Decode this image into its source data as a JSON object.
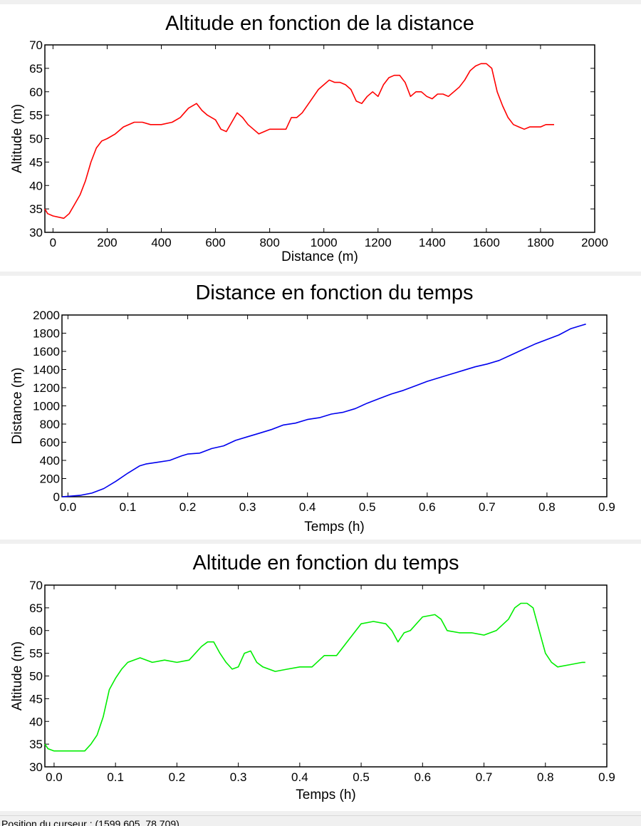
{
  "status_bar": {
    "label": "Position du curseur :",
    "value": "(1599.605, 78.709)"
  },
  "chart_data": [
    {
      "type": "line",
      "title": "Altitude en fonction de la distance",
      "xlabel": "Distance (m)",
      "ylabel": "Altitude (m)",
      "xlim": [
        -30,
        2000
      ],
      "ylim": [
        30,
        70
      ],
      "xticks": [
        0,
        200,
        400,
        600,
        800,
        1000,
        1200,
        1400,
        1600,
        1800,
        2000
      ],
      "xtick_labels": [
        "0",
        "200",
        "400",
        "600",
        "800",
        "1000",
        "1200",
        "1400",
        "1600",
        "1800",
        "2000"
      ],
      "yticks": [
        30,
        35,
        40,
        45,
        50,
        55,
        60,
        65,
        70
      ],
      "ytick_labels": [
        "30",
        "35",
        "40",
        "45",
        "50",
        "55",
        "60",
        "65",
        "70"
      ],
      "grid": false,
      "series": [
        {
          "color": "#ff0000",
          "x": [
            -30,
            -20,
            0,
            40,
            60,
            80,
            100,
            120,
            140,
            160,
            180,
            200,
            230,
            260,
            300,
            330,
            360,
            400,
            440,
            470,
            500,
            530,
            550,
            570,
            600,
            620,
            640,
            660,
            680,
            700,
            720,
            740,
            760,
            780,
            800,
            840,
            860,
            880,
            900,
            920,
            950,
            980,
            1000,
            1020,
            1040,
            1060,
            1080,
            1100,
            1120,
            1140,
            1160,
            1180,
            1200,
            1220,
            1240,
            1260,
            1280,
            1300,
            1320,
            1340,
            1360,
            1380,
            1400,
            1420,
            1440,
            1460,
            1480,
            1500,
            1520,
            1540,
            1560,
            1580,
            1600,
            1620,
            1640,
            1660,
            1680,
            1700,
            1720,
            1740,
            1760,
            1780,
            1800,
            1820,
            1840,
            1850
          ],
          "y": [
            35,
            34,
            33.5,
            33,
            34,
            36,
            38,
            41,
            45,
            48,
            49.5,
            50,
            51,
            52.5,
            53.5,
            53.5,
            53,
            53,
            53.5,
            54.5,
            56.5,
            57.5,
            56,
            55,
            54,
            52,
            51.5,
            53.5,
            55.5,
            54.5,
            53,
            52,
            51,
            51.5,
            52,
            52,
            52,
            54.5,
            54.5,
            55.5,
            58,
            60.5,
            61.5,
            62.5,
            62,
            62,
            61.5,
            60.5,
            58,
            57.5,
            59,
            60,
            59,
            61.5,
            63,
            63.5,
            63.5,
            62,
            59,
            60,
            60,
            59,
            58.5,
            59.5,
            59.5,
            59,
            60,
            61,
            62.5,
            64.5,
            65.5,
            66,
            66,
            65,
            60,
            57,
            54.5,
            53,
            52.5,
            52,
            52.5,
            52.5,
            52.5,
            53,
            53,
            53
          ]
        }
      ]
    },
    {
      "type": "line",
      "title": "Distance en fonction du temps",
      "xlabel": "Temps (h)",
      "ylabel": "Distance (m)",
      "xlim": [
        -0.01,
        0.9
      ],
      "ylim": [
        0,
        2000
      ],
      "xticks": [
        0,
        0.1,
        0.2,
        0.3,
        0.4,
        0.5,
        0.6,
        0.7,
        0.8,
        0.9
      ],
      "xtick_labels": [
        "0.0",
        "0.1",
        "0.2",
        "0.3",
        "0.4",
        "0.5",
        "0.6",
        "0.7",
        "0.8",
        "0.9"
      ],
      "yticks": [
        0,
        200,
        400,
        600,
        800,
        1000,
        1200,
        1400,
        1600,
        1800,
        2000
      ],
      "ytick_labels": [
        "0",
        "200",
        "400",
        "600",
        "800",
        "1000",
        "1200",
        "1400",
        "1600",
        "1800",
        "2000"
      ],
      "grid": false,
      "series": [
        {
          "color": "#0000ee",
          "x": [
            -0.01,
            0.0,
            0.02,
            0.04,
            0.06,
            0.08,
            0.1,
            0.12,
            0.13,
            0.15,
            0.17,
            0.19,
            0.2,
            0.22,
            0.24,
            0.26,
            0.28,
            0.3,
            0.32,
            0.34,
            0.36,
            0.38,
            0.4,
            0.42,
            0.44,
            0.46,
            0.48,
            0.5,
            0.52,
            0.54,
            0.56,
            0.58,
            0.6,
            0.62,
            0.64,
            0.66,
            0.68,
            0.7,
            0.72,
            0.74,
            0.76,
            0.78,
            0.8,
            0.82,
            0.84,
            0.86,
            0.865
          ],
          "y": [
            0,
            5,
            15,
            40,
            90,
            170,
            260,
            340,
            360,
            380,
            400,
            450,
            470,
            480,
            530,
            560,
            620,
            660,
            700,
            740,
            790,
            810,
            850,
            870,
            910,
            930,
            970,
            1030,
            1080,
            1130,
            1170,
            1220,
            1270,
            1310,
            1350,
            1390,
            1430,
            1460,
            1500,
            1560,
            1620,
            1680,
            1730,
            1780,
            1850,
            1890,
            1900
          ]
        }
      ]
    },
    {
      "type": "line",
      "title": "Altitude en fonction du temps",
      "xlabel": "Temps (h)",
      "ylabel": "Altitude (m)",
      "xlim": [
        -0.015,
        0.9
      ],
      "ylim": [
        30,
        70
      ],
      "xticks": [
        0,
        0.1,
        0.2,
        0.3,
        0.4,
        0.5,
        0.6,
        0.7,
        0.8,
        0.9
      ],
      "xtick_labels": [
        "0.0",
        "0.1",
        "0.2",
        "0.3",
        "0.4",
        "0.5",
        "0.6",
        "0.7",
        "0.8",
        "0.9"
      ],
      "yticks": [
        30,
        35,
        40,
        45,
        50,
        55,
        60,
        65,
        70
      ],
      "ytick_labels": [
        "30",
        "35",
        "40",
        "45",
        "50",
        "55",
        "60",
        "65",
        "70"
      ],
      "grid": false,
      "series": [
        {
          "color": "#00ee00",
          "x": [
            -0.015,
            -0.01,
            0.0,
            0.02,
            0.05,
            0.06,
            0.07,
            0.08,
            0.09,
            0.1,
            0.11,
            0.12,
            0.14,
            0.16,
            0.18,
            0.2,
            0.22,
            0.24,
            0.25,
            0.26,
            0.27,
            0.28,
            0.29,
            0.3,
            0.31,
            0.32,
            0.33,
            0.34,
            0.36,
            0.38,
            0.4,
            0.42,
            0.44,
            0.46,
            0.48,
            0.5,
            0.52,
            0.54,
            0.55,
            0.56,
            0.57,
            0.58,
            0.6,
            0.62,
            0.63,
            0.64,
            0.66,
            0.68,
            0.7,
            0.72,
            0.74,
            0.75,
            0.76,
            0.77,
            0.78,
            0.79,
            0.8,
            0.81,
            0.82,
            0.84,
            0.86,
            0.865
          ],
          "y": [
            35,
            34,
            33.5,
            33.5,
            33.5,
            35,
            37,
            41,
            47,
            49.5,
            51.5,
            53,
            54,
            53,
            53.5,
            53,
            53.5,
            56.5,
            57.5,
            57.5,
            55,
            53,
            51.5,
            52,
            55,
            55.5,
            53,
            52,
            51,
            51.5,
            52,
            52,
            54.5,
            54.5,
            58,
            61.5,
            62,
            61.5,
            60,
            57.5,
            59.5,
            60,
            63,
            63.5,
            62.5,
            60,
            59.5,
            59.5,
            59,
            60,
            62.5,
            65,
            66,
            66,
            65,
            60,
            55,
            53,
            52,
            52.5,
            53,
            53
          ]
        }
      ]
    }
  ]
}
